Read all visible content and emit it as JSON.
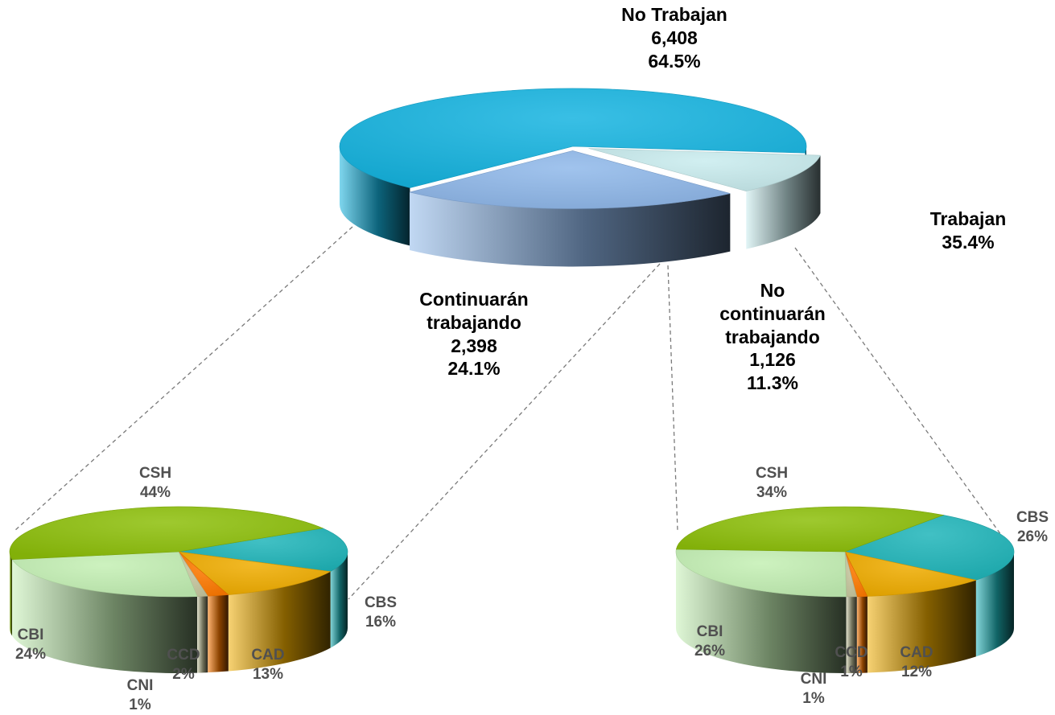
{
  "colors": {
    "no_trabajan": "#16b4e0",
    "continuaran": "#8fb8ea",
    "no_continuaran": "#c9ecee",
    "CSH": "#8dbf0a",
    "CBS": "#1fb5ba",
    "CAD": "#f0ad00",
    "CCD": "#ff7a00",
    "CNI": "#c8c8a0",
    "CBI": "#c4f0b4"
  },
  "chart_data": [
    {
      "type": "pie",
      "variant": "3d-exploded",
      "slices": [
        {
          "key": "no_trabajan",
          "lines": [
            "No Trabajan",
            "6,408",
            "64.5%"
          ],
          "value": 6408,
          "percent": 64.5
        },
        {
          "key": "continuaran",
          "lines": [
            "Continuarán",
            "trabajando",
            "2,398",
            "24.1%"
          ],
          "value": 2398,
          "percent": 24.1
        },
        {
          "key": "no_continuaran",
          "lines": [
            "No",
            "continuarán",
            "trabajando",
            "1,126",
            "11.3%"
          ],
          "value": 1126,
          "percent": 11.3
        }
      ],
      "group_label": [
        "Trabajan",
        "35.4%"
      ]
    },
    {
      "type": "pie",
      "variant": "3d",
      "breakdown_of": "continuaran",
      "slices": [
        {
          "key": "CSH",
          "lines": [
            "CSH",
            "44%"
          ],
          "percent": 44
        },
        {
          "key": "CBS",
          "lines": [
            "CBS",
            "16%"
          ],
          "percent": 16
        },
        {
          "key": "CAD",
          "lines": [
            "CAD",
            "13%"
          ],
          "percent": 13
        },
        {
          "key": "CCD",
          "lines": [
            "CCD",
            "2%"
          ],
          "percent": 2
        },
        {
          "key": "CNI",
          "lines": [
            "CNI",
            "1%"
          ],
          "percent": 1
        },
        {
          "key": "CBI",
          "lines": [
            "CBI",
            "24%"
          ],
          "percent": 24
        }
      ]
    },
    {
      "type": "pie",
      "variant": "3d",
      "breakdown_of": "no_continuaran",
      "slices": [
        {
          "key": "CSH",
          "lines": [
            "CSH",
            "34%"
          ],
          "percent": 34
        },
        {
          "key": "CBS",
          "lines": [
            "CBS",
            "26%"
          ],
          "percent": 26
        },
        {
          "key": "CAD",
          "lines": [
            "CAD",
            "12%"
          ],
          "percent": 12
        },
        {
          "key": "CCD",
          "lines": [
            "CCD",
            "1%"
          ],
          "percent": 1
        },
        {
          "key": "CNI",
          "lines": [
            "CNI",
            "1%"
          ],
          "percent": 1
        },
        {
          "key": "CBI",
          "lines": [
            "CBI",
            "26%"
          ],
          "percent": 26
        }
      ]
    }
  ]
}
